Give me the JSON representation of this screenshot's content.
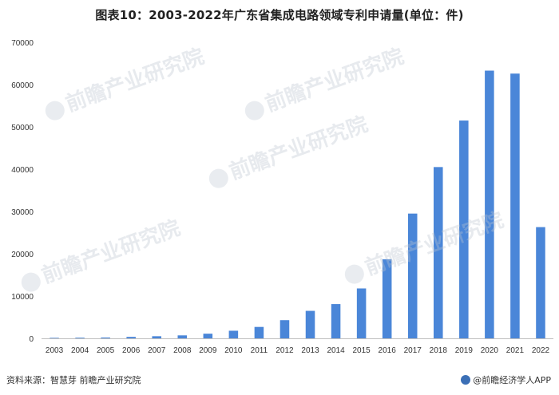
{
  "title": "图表10：2003-2022年广东省集成电路领域专利申请量(单位：件)",
  "footer": {
    "source": "资料来源：智慧芽 前瞻产业研究院",
    "brand": "@前瞻经济学人APP",
    "brand_icon": "qianzhan-logo-icon"
  },
  "watermark": {
    "text": "前瞻产业研究院"
  },
  "colors": {
    "bar": "#4a86d8",
    "axis": "#bfbfbf"
  },
  "chart_data": {
    "type": "bar",
    "title": "图表10：2003-2022年广东省集成电路领域专利申请量(单位：件)",
    "xlabel": "",
    "ylabel": "",
    "categories": [
      "2003",
      "2004",
      "2005",
      "2006",
      "2007",
      "2008",
      "2009",
      "2010",
      "2011",
      "2012",
      "2013",
      "2014",
      "2015",
      "2016",
      "2017",
      "2018",
      "2019",
      "2020",
      "2021",
      "2022"
    ],
    "values": [
      120,
      150,
      200,
      350,
      500,
      700,
      1100,
      1800,
      2700,
      4300,
      6500,
      8100,
      11800,
      18700,
      29500,
      40500,
      51500,
      63300,
      62600,
      26300
    ],
    "ylim": [
      0,
      70000
    ],
    "yticks": [
      0,
      10000,
      20000,
      30000,
      40000,
      50000,
      60000,
      70000
    ],
    "ytick_labels": [
      "0",
      "10000",
      "20000",
      "30000",
      "40000",
      "50000",
      "60000",
      "70000"
    ],
    "grid": false,
    "legend": "none"
  }
}
